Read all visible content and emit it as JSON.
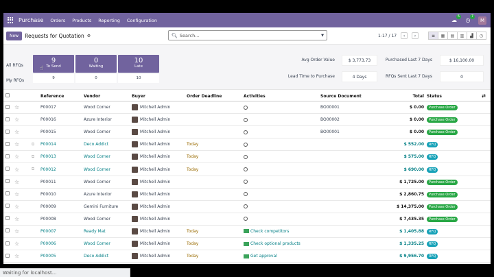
{
  "topbar": {
    "brand": "Purchase",
    "menus": [
      "Orders",
      "Products",
      "Reporting",
      "Configuration"
    ],
    "chat_badge": "5",
    "activity_badge": "7",
    "avatar_letter": "M"
  },
  "control": {
    "new_label": "New",
    "title": "Requests for Quotation",
    "search_placeholder": "Search...",
    "pager": "1-17 / 17"
  },
  "dashboard": {
    "all_rfqs_label": "All RFQs",
    "my_rfqs_label": "My RFQs",
    "tiles": [
      {
        "value": "9",
        "label": "To Send",
        "sub": "9"
      },
      {
        "value": "0",
        "label": "Waiting",
        "sub": "0"
      },
      {
        "value": "10",
        "label": "Late",
        "sub": "10"
      }
    ],
    "avg_order_label": "Avg Order Value",
    "avg_order_value": "$ 3,773.73",
    "lead_time_label": "Lead Time to Purchase",
    "lead_time_value": "4 Days",
    "purchased_label": "Purchased Last 7 Days",
    "purchased_value": "$ 16,100.00",
    "rfqs_sent_label": "RFQs Sent Last 7 Days",
    "rfqs_sent_value": "0"
  },
  "table": {
    "headers": {
      "reference": "Reference",
      "vendor": "Vendor",
      "buyer": "Buyer",
      "deadline": "Order Deadline",
      "activities": "Activities",
      "source": "Source Document",
      "total": "Total",
      "status": "Status"
    },
    "rows": [
      {
        "ref": "P00017",
        "vendor": "Wood Corner",
        "buyer": "Mitchell Admin",
        "deadline": "",
        "activity": "",
        "source": "BO00001",
        "total": "$ 0.00",
        "status": "Purchase Order"
      },
      {
        "ref": "P00016",
        "vendor": "Azure Interior",
        "buyer": "Mitchell Admin",
        "deadline": "",
        "activity": "",
        "source": "BO00002",
        "total": "$ 0.00",
        "status": "Purchase Order"
      },
      {
        "ref": "P00015",
        "vendor": "Wood Corner",
        "buyer": "Mitchell Admin",
        "deadline": "",
        "activity": "",
        "source": "BO00001",
        "total": "$ 0.00",
        "status": "Purchase Order"
      },
      {
        "ref": "P00014",
        "vendor": "Deco Addict",
        "buyer": "Mitchell Admin",
        "deadline": "Today",
        "activity": "",
        "source": "",
        "total": "$ 552.00",
        "status": "RFQ"
      },
      {
        "ref": "P00013",
        "vendor": "Wood Corner",
        "buyer": "Mitchell Admin",
        "deadline": "Today",
        "activity": "",
        "source": "",
        "total": "$ 575.00",
        "status": "RFQ"
      },
      {
        "ref": "P00012",
        "vendor": "Wood Corner",
        "buyer": "Mitchell Admin",
        "deadline": "Today",
        "activity": "",
        "source": "",
        "total": "$ 690.00",
        "status": "RFQ"
      },
      {
        "ref": "P00011",
        "vendor": "Wood Corner",
        "buyer": "Mitchell Admin",
        "deadline": "",
        "activity": "",
        "source": "",
        "total": "$ 1,725.00",
        "status": "Purchase Order"
      },
      {
        "ref": "P00010",
        "vendor": "Azure Interior",
        "buyer": "Mitchell Admin",
        "deadline": "",
        "activity": "",
        "source": "",
        "total": "$ 2,860.75",
        "status": "Purchase Order"
      },
      {
        "ref": "P00009",
        "vendor": "Gemini Furniture",
        "buyer": "Mitchell Admin",
        "deadline": "",
        "activity": "",
        "source": "",
        "total": "$ 14,375.00",
        "status": "Purchase Order"
      },
      {
        "ref": "P00008",
        "vendor": "Wood Corner",
        "buyer": "Mitchell Admin",
        "deadline": "",
        "activity": "",
        "source": "",
        "total": "$ 7,435.35",
        "status": "Purchase Order"
      },
      {
        "ref": "P00007",
        "vendor": "Ready Mat",
        "buyer": "Mitchell Admin",
        "deadline": "Today",
        "activity": "Check competitors",
        "source": "",
        "total": "$ 1,405.88",
        "status": "RFQ"
      },
      {
        "ref": "P00006",
        "vendor": "Wood Corner",
        "buyer": "Mitchell Admin",
        "deadline": "Today",
        "activity": "Check optional products",
        "source": "",
        "total": "$ 1,335.25",
        "status": "RFQ"
      },
      {
        "ref": "P00005",
        "vendor": "Deco Addict",
        "buyer": "Mitchell Admin",
        "deadline": "Today",
        "activity": "Get approval",
        "source": "",
        "total": "$ 9,956.70",
        "status": "RFQ"
      }
    ]
  },
  "browser_status": "Waiting for localhost..."
}
